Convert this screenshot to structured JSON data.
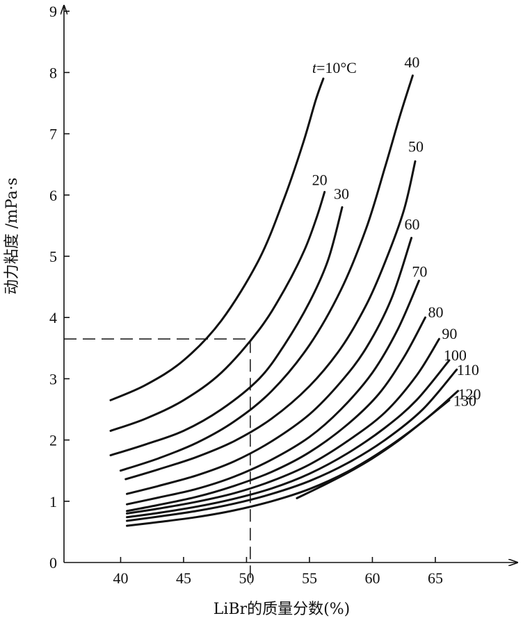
{
  "chart_data": {
    "type": "line",
    "xlabel": "LiBr的质量分数(%)",
    "ylabel": "动力粘度 /mPa·s",
    "xlim": [
      35.5,
      68
    ],
    "ylim": [
      0,
      9
    ],
    "xticks": [
      40,
      45,
      50,
      55,
      60,
      65
    ],
    "yticks": [
      0,
      1,
      2,
      3,
      4,
      5,
      6,
      7,
      8,
      9
    ],
    "grid": false,
    "first_label_prefix": "t=",
    "first_label_unit": "°C",
    "series": [
      {
        "name": "10",
        "label": "10",
        "x": [
          39.2,
          42,
          45,
          48,
          51,
          53,
          54.5,
          55.5,
          56.1
        ],
        "y": [
          2.65,
          2.9,
          3.3,
          3.95,
          4.95,
          5.95,
          6.85,
          7.55,
          7.9
        ]
      },
      {
        "name": "20",
        "label": "20",
        "x": [
          39.2,
          42,
          45,
          48,
          51,
          53,
          54.6,
          55.6,
          56.2
        ],
        "y": [
          2.15,
          2.35,
          2.65,
          3.1,
          3.8,
          4.45,
          5.1,
          5.65,
          6.05
        ]
      },
      {
        "name": "30",
        "label": "30",
        "x": [
          39.2,
          42,
          45,
          48,
          51,
          53,
          55,
          56.5,
          57.6
        ],
        "y": [
          1.75,
          1.93,
          2.15,
          2.5,
          3.0,
          3.55,
          4.25,
          4.95,
          5.8
        ]
      },
      {
        "name": "40",
        "label": "40",
        "x": [
          40,
          43,
          46,
          49,
          52,
          55,
          57.5,
          59.5,
          61,
          62.2,
          63.2
        ],
        "y": [
          1.5,
          1.7,
          1.95,
          2.3,
          2.8,
          3.55,
          4.45,
          5.45,
          6.45,
          7.3,
          7.95
        ]
      },
      {
        "name": "50",
        "label": "50",
        "x": [
          40.4,
          43,
          46,
          49,
          52,
          55,
          57.5,
          59.5,
          61,
          62.5,
          63.4
        ],
        "y": [
          1.36,
          1.52,
          1.72,
          1.98,
          2.35,
          2.88,
          3.5,
          4.2,
          4.9,
          5.75,
          6.55
        ]
      },
      {
        "name": "60",
        "label": "60",
        "x": [
          40.5,
          43,
          46,
          49,
          52,
          55,
          57.5,
          59.5,
          61.5,
          63.1
        ],
        "y": [
          1.12,
          1.25,
          1.42,
          1.65,
          1.98,
          2.42,
          2.95,
          3.5,
          4.3,
          5.3
        ]
      },
      {
        "name": "70",
        "label": "70",
        "x": [
          40.5,
          43,
          46,
          49,
          52,
          55,
          57.5,
          60,
          62,
          63.7
        ],
        "y": [
          0.95,
          1.06,
          1.2,
          1.4,
          1.68,
          2.05,
          2.5,
          3.1,
          3.8,
          4.6
        ]
      },
      {
        "name": "80",
        "label": "80",
        "x": [
          40.5,
          43,
          46,
          49,
          52,
          55,
          58,
          60.5,
          62.5,
          64.2
        ],
        "y": [
          0.84,
          0.94,
          1.07,
          1.25,
          1.48,
          1.8,
          2.25,
          2.75,
          3.35,
          4.0
        ]
      },
      {
        "name": "90",
        "label": "90",
        "x": [
          40.5,
          43,
          46,
          49,
          52,
          55,
          58,
          61,
          63.5,
          65.3
        ],
        "y": [
          0.8,
          0.88,
          0.99,
          1.13,
          1.33,
          1.6,
          1.98,
          2.45,
          3.05,
          3.65
        ]
      },
      {
        "name": "100",
        "label": "100",
        "x": [
          40.5,
          43,
          46,
          49,
          52,
          55,
          58,
          61,
          63.5,
          66.1
        ],
        "y": [
          0.74,
          0.81,
          0.91,
          1.04,
          1.21,
          1.45,
          1.78,
          2.2,
          2.65,
          3.3
        ]
      },
      {
        "name": "110",
        "label": "110",
        "x": [
          40.5,
          43,
          46,
          49,
          52,
          55,
          58,
          61,
          64,
          66.7
        ],
        "y": [
          0.68,
          0.75,
          0.84,
          0.96,
          1.12,
          1.33,
          1.62,
          2.0,
          2.5,
          3.15
        ]
      },
      {
        "name": "120",
        "label": "120",
        "x": [
          40.5,
          43,
          46,
          49,
          52,
          55,
          58,
          61,
          64,
          66.8
        ],
        "y": [
          0.6,
          0.66,
          0.74,
          0.85,
          1.0,
          1.2,
          1.48,
          1.85,
          2.3,
          2.8
        ]
      },
      {
        "name": "130",
        "label": "130",
        "x": [
          54,
          56,
          58,
          60,
          62,
          64,
          66.1
        ],
        "y": [
          1.05,
          1.25,
          1.46,
          1.7,
          1.98,
          2.3,
          2.65
        ]
      }
    ],
    "annotation": {
      "x": 50.3,
      "y": 3.65,
      "style": "dashed"
    }
  }
}
